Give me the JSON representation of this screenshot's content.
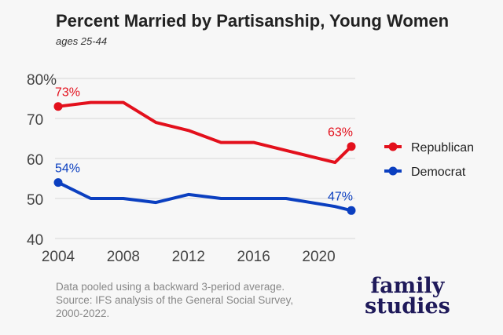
{
  "title": "Percent Married by Partisanship, Young Women",
  "subtitle": "ages 25-44",
  "note": [
    "Data pooled using a backward 3-period average.",
    "Source: IFS analysis of the General Social Survey,",
    "2000-2022."
  ],
  "logo": [
    "family",
    "studies"
  ],
  "chart_data": {
    "type": "line",
    "title": "Percent Married by Partisanship, Young Women",
    "subtitle": "ages 25-44",
    "xlim": [
      2004,
      2022
    ],
    "ylim": [
      40,
      80
    ],
    "xticks": [
      "2004",
      "2008",
      "2012",
      "2016",
      "2020"
    ],
    "yticks": [
      "80%",
      "70",
      "60",
      "50",
      "40"
    ],
    "grid": true,
    "legend": "right",
    "series": [
      {
        "name": "Republican",
        "color": "#e3101c",
        "x": [
          2004,
          2006,
          2008,
          2010,
          2012,
          2014,
          2016,
          2018,
          2021,
          2022
        ],
        "values": [
          73,
          74,
          74,
          69,
          67,
          64,
          64,
          62,
          59,
          63
        ],
        "labels": [
          "73%",
          "63%"
        ]
      },
      {
        "name": "Democrat",
        "color": "#0b3fc0",
        "x": [
          2004,
          2006,
          2008,
          2010,
          2012,
          2014,
          2016,
          2018,
          2021,
          2022
        ],
        "values": [
          54,
          50,
          50,
          49,
          51,
          50,
          50,
          50,
          48,
          47
        ],
        "labels": [
          "54%",
          "47%"
        ]
      }
    ]
  }
}
